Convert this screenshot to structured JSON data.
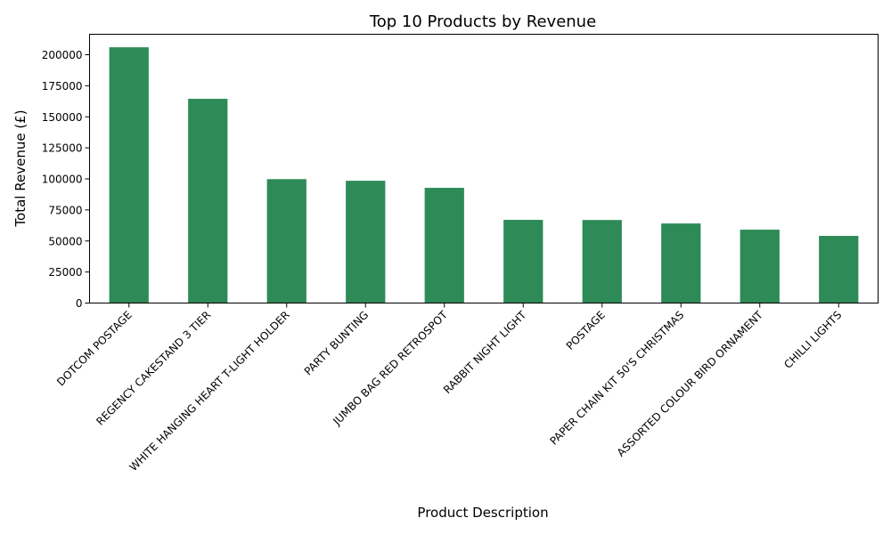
{
  "chart_data": {
    "type": "bar",
    "title": "Top 10 Products by Revenue",
    "xlabel": "Product Description",
    "ylabel": "Total Revenue (£)",
    "ylim": [
      0,
      215000
    ],
    "yticks": [
      0,
      25000,
      50000,
      75000,
      100000,
      125000,
      150000,
      175000,
      200000
    ],
    "grid": false,
    "bar_color": "#2e8b57",
    "categories": [
      "DOTCOM POSTAGE",
      "REGENCY CAKESTAND 3 TIER",
      "WHITE HANGING HEART T-LIGHT HOLDER",
      "PARTY BUNTING",
      "JUMBO BAG RED RETROSPOT",
      "RABBIT NIGHT LIGHT",
      "POSTAGE",
      "PAPER CHAIN KIT 50'S CHRISTMAS",
      "ASSORTED COLOUR BIRD ORNAMENT",
      "CHILLI LIGHTS"
    ],
    "values": [
      206000,
      164500,
      99800,
      98500,
      92800,
      67000,
      66900,
      64100,
      59100,
      54100
    ]
  }
}
